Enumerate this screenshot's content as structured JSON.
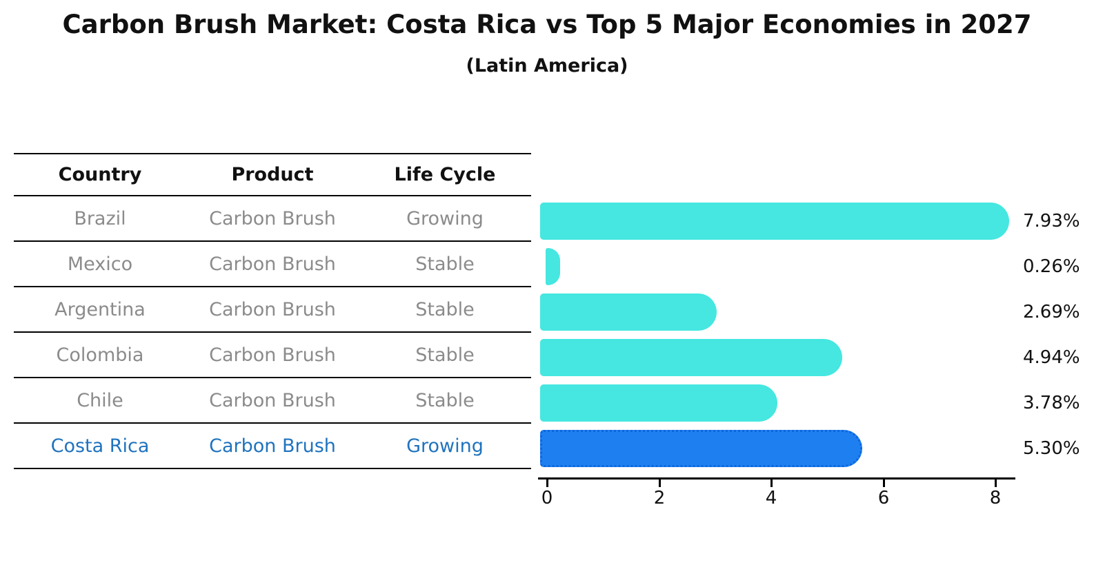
{
  "title": "Carbon Brush Market: Costa Rica vs Top 5 Major Economies in 2027",
  "subtitle": "(Latin America)",
  "table": {
    "headers": [
      "Country",
      "Product",
      "Life Cycle"
    ],
    "rows": [
      {
        "country": "Brazil",
        "product": "Carbon Brush",
        "life_cycle": "Growing",
        "highlight": false
      },
      {
        "country": "Mexico",
        "product": "Carbon Brush",
        "life_cycle": "Stable",
        "highlight": false
      },
      {
        "country": "Argentina",
        "product": "Carbon Brush",
        "life_cycle": "Stable",
        "highlight": false
      },
      {
        "country": "Colombia",
        "product": "Carbon Brush",
        "life_cycle": "Stable",
        "highlight": false
      },
      {
        "country": "Chile",
        "product": "Carbon Brush",
        "life_cycle": "Stable",
        "highlight": false
      },
      {
        "country": "Costa Rica",
        "product": "Carbon Brush",
        "life_cycle": "Growing",
        "highlight": true
      }
    ]
  },
  "chart_data": {
    "type": "bar",
    "orientation": "horizontal",
    "title": "Carbon Brush Market: Costa Rica vs Top 5 Major Economies in 2027",
    "subtitle": "(Latin America)",
    "categories": [
      "Brazil",
      "Mexico",
      "Argentina",
      "Colombia",
      "Chile",
      "Costa Rica"
    ],
    "values": [
      7.93,
      0.26,
      2.69,
      4.94,
      3.78,
      5.3
    ],
    "value_labels": [
      "7.93%",
      "0.26%",
      "2.69%",
      "4.94%",
      "3.78%",
      "5.30%"
    ],
    "x_ticks": [
      0,
      2,
      4,
      6,
      8
    ],
    "xlim": [
      0,
      8.5
    ],
    "grid": false,
    "legend": false,
    "bar_color": "#45e7e0",
    "highlight_index": 5,
    "highlight_bar_color": "#1e80f0",
    "highlight_text_color": "#1f73be",
    "axis_color": "#000000",
    "label_color": "#111111",
    "row_text_color": "#8b8b8b"
  }
}
